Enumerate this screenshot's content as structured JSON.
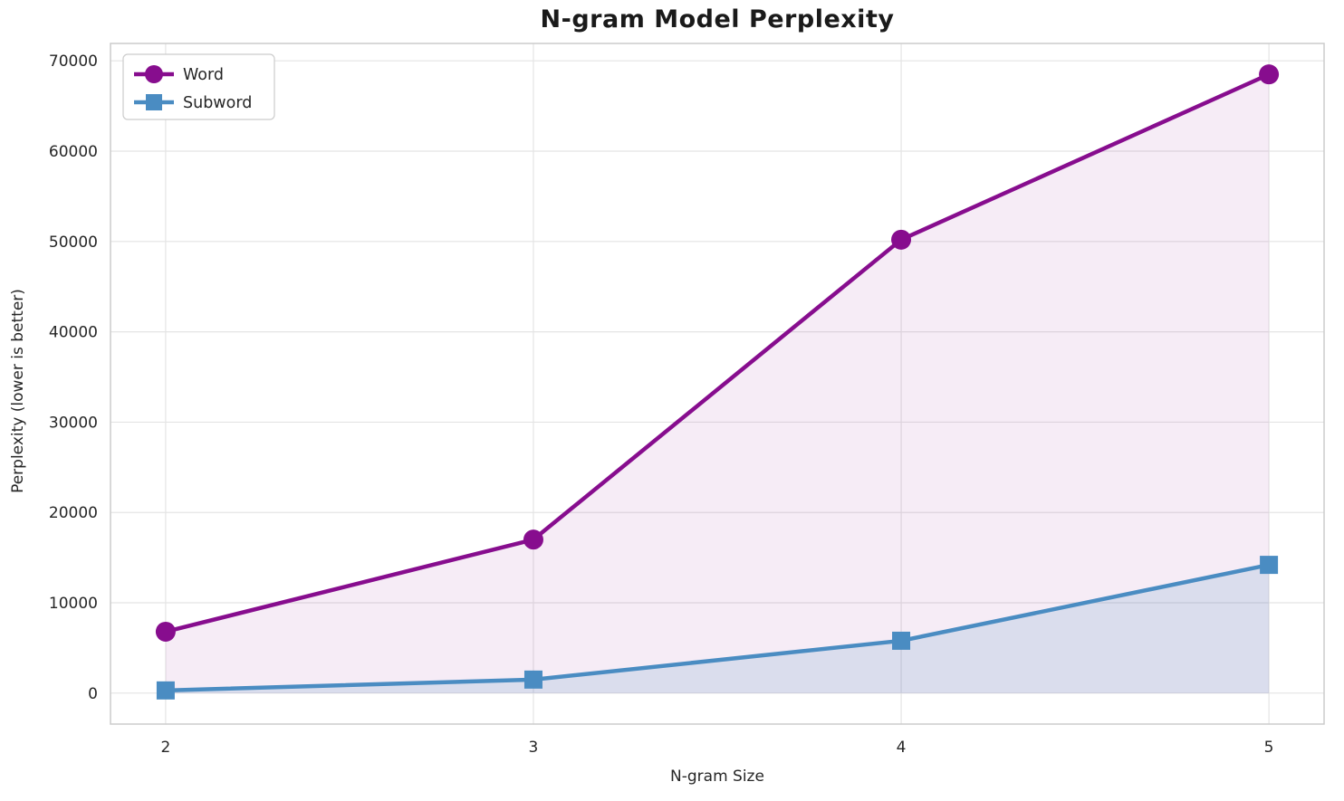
{
  "chart_data": {
    "type": "line",
    "title": "N-gram Model Perplexity",
    "xlabel": "N-gram Size",
    "ylabel": "Perplexity (lower is better)",
    "x": [
      2,
      3,
      4,
      5
    ],
    "x_tick_labels": [
      "2",
      "3",
      "4",
      "5"
    ],
    "y_ticks": [
      0,
      10000,
      20000,
      30000,
      40000,
      50000,
      60000,
      70000
    ],
    "y_tick_labels": [
      "0",
      "10000",
      "20000",
      "30000",
      "40000",
      "50000",
      "60000",
      "70000"
    ],
    "xlim": [
      1.85,
      5.15
    ],
    "ylim": [
      -3425,
      71925
    ],
    "grid": true,
    "legend_position": "upper left",
    "series": [
      {
        "name": "Word",
        "values": [
          6800,
          17000,
          50200,
          68500
        ],
        "color": "#870d8e",
        "marker": "circle",
        "fill_to_zero": true,
        "fill_alpha": 0.08
      },
      {
        "name": "Subword",
        "values": [
          300,
          1500,
          5800,
          14200
        ],
        "color": "#4a8cc2",
        "marker": "square",
        "fill_to_zero": true,
        "fill_alpha": 0.16
      }
    ],
    "colors": {
      "grid": "#e4e4e4",
      "spine": "#cccccc",
      "tick_text": "#262626",
      "legend_border": "#cccccc",
      "legend_bg": "#ffffff"
    }
  }
}
